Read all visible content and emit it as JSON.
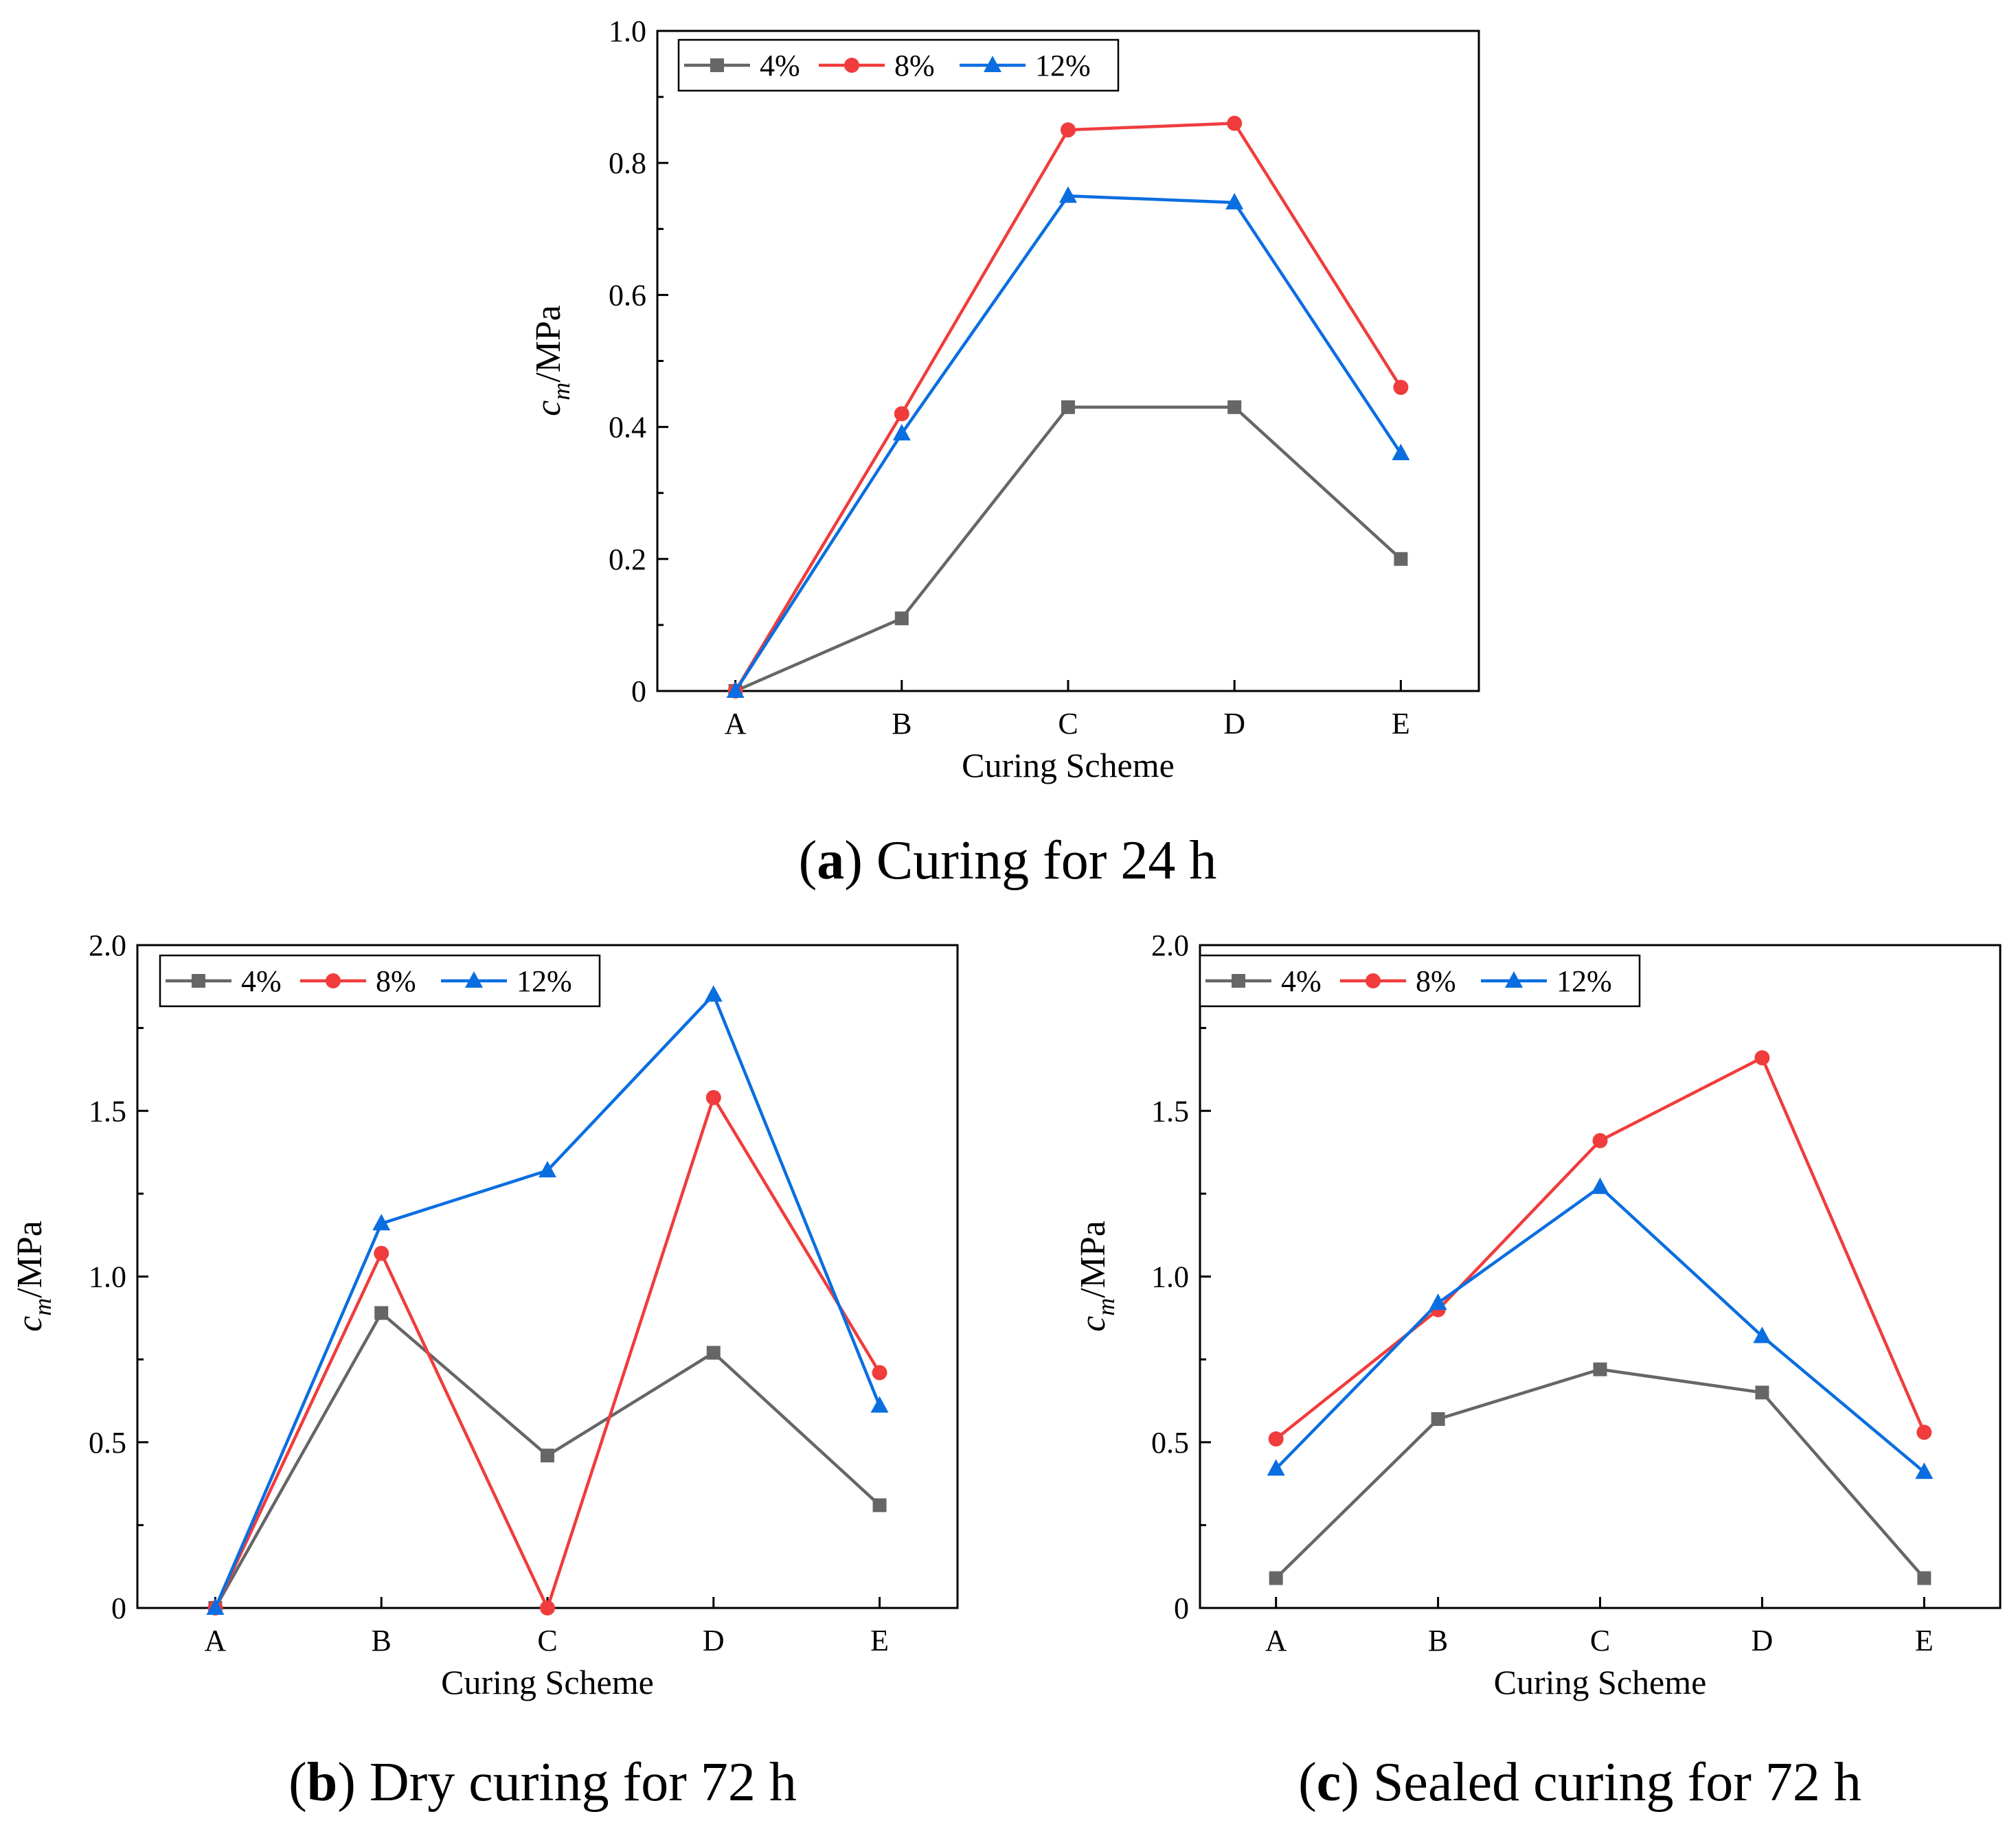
{
  "chart_data": [
    {
      "id": "a",
      "type": "line",
      "caption_letter": "a",
      "caption_text": "Curing for 24 h",
      "categories": [
        "A",
        "B",
        "C",
        "D",
        "E"
      ],
      "xlabel": "Curing Scheme",
      "ylabel_main": "c",
      "ylabel_sub": "m",
      "ylabel_unit": "/MPa",
      "ylim": [
        0,
        1.0
      ],
      "yticks": [
        0,
        0.2,
        0.4,
        0.6,
        0.8,
        1.0
      ],
      "ytick_labels": [
        "0",
        "0.2",
        "0.4",
        "0.6",
        "0.8",
        "1.0"
      ],
      "legend_position": "top-left",
      "series": [
        {
          "name": "4%",
          "marker": "square",
          "color": "#666666",
          "values": [
            0,
            0.11,
            0.43,
            0.43,
            0.2
          ]
        },
        {
          "name": "8%",
          "marker": "circle",
          "color": "#f03c3c",
          "values": [
            0,
            0.42,
            0.85,
            0.86,
            0.46
          ]
        },
        {
          "name": "12%",
          "marker": "triangle",
          "color": "#0a6ee0",
          "values": [
            0,
            0.39,
            0.75,
            0.74,
            0.36
          ]
        }
      ]
    },
    {
      "id": "b",
      "type": "line",
      "caption_letter": "b",
      "caption_text": "Dry curing for 72 h",
      "categories": [
        "A",
        "B",
        "C",
        "D",
        "E"
      ],
      "xlabel": "Curing Scheme",
      "ylabel_main": "c",
      "ylabel_sub": "m",
      "ylabel_unit": "/MPa",
      "ylim": [
        0,
        2.0
      ],
      "yticks": [
        0,
        0.5,
        1.0,
        1.5,
        2.0
      ],
      "ytick_labels": [
        "0",
        "0.5",
        "1.0",
        "1.5",
        "2.0"
      ],
      "legend_position": "top-left",
      "series": [
        {
          "name": "4%",
          "marker": "square",
          "color": "#666666",
          "values": [
            0,
            0.89,
            0.46,
            0.77,
            0.31
          ]
        },
        {
          "name": "8%",
          "marker": "circle",
          "color": "#f03c3c",
          "values": [
            0,
            1.07,
            0,
            1.54,
            0.71
          ]
        },
        {
          "name": "12%",
          "marker": "triangle",
          "color": "#0a6ee0",
          "values": [
            0,
            1.16,
            1.32,
            1.85,
            0.61
          ]
        }
      ]
    },
    {
      "id": "c",
      "type": "line",
      "caption_letter": "c",
      "caption_text": "Sealed curing for 72 h",
      "categories": [
        "A",
        "B",
        "C",
        "D",
        "E"
      ],
      "xlabel": "Curing Scheme",
      "ylabel_main": "c",
      "ylabel_sub": "m",
      "ylabel_unit": "/MPa",
      "ylim": [
        0,
        2.0
      ],
      "yticks": [
        0,
        0.5,
        1.0,
        1.5,
        2.0
      ],
      "ytick_labels": [
        "0",
        "0.5",
        "1.0",
        "1.5",
        "2.0"
      ],
      "legend_position": "top-left",
      "series": [
        {
          "name": "4%",
          "marker": "square",
          "color": "#666666",
          "values": [
            0.09,
            0.57,
            0.72,
            0.65,
            0.09
          ]
        },
        {
          "name": "8%",
          "marker": "circle",
          "color": "#f03c3c",
          "values": [
            0.51,
            0.9,
            1.41,
            1.66,
            0.53
          ]
        },
        {
          "name": "12%",
          "marker": "triangle",
          "color": "#0a6ee0",
          "values": [
            0.42,
            0.92,
            1.27,
            0.82,
            0.41
          ]
        }
      ]
    }
  ]
}
